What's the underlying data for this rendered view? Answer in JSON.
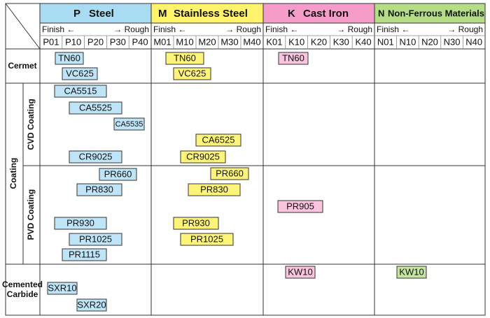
{
  "materials": [
    {
      "code": "P",
      "name": "Steel",
      "finish": "Finish ←",
      "rough": "→ Rough",
      "grades": [
        "P01",
        "P10",
        "P20",
        "P30",
        "P40"
      ]
    },
    {
      "code": "M",
      "name": "Stainless Steel",
      "finish": "Finish ←",
      "rough": "→ Rough",
      "grades": [
        "M01",
        "M10",
        "M20",
        "M30",
        "M40"
      ]
    },
    {
      "code": "K",
      "name": "Cast Iron",
      "finish": "Finish ←",
      "rough": "→ Rough",
      "grades": [
        "K01",
        "K10",
        "K20",
        "K30",
        "K40"
      ]
    },
    {
      "code": "N",
      "name": "Non-Ferrous Materials",
      "finish": "Finish ←",
      "rough": "→ Rough",
      "grades": [
        "N01",
        "N10",
        "N20",
        "N30",
        "N40"
      ]
    }
  ],
  "sections": [
    {
      "label": "Cermet",
      "cells": [
        [
          "TN60",
          "VC625"
        ],
        [
          "TN60",
          "VC625"
        ],
        [
          "TN60"
        ],
        []
      ]
    },
    {
      "label": "Coating",
      "subsections": [
        {
          "label": "CVD Coating",
          "cells": [
            [
              "CA5515",
              "CA5525",
              "CA5535",
              "CR9025"
            ],
            [
              "CA6525",
              "CR9025"
            ],
            [],
            []
          ]
        },
        {
          "label": "PVD Coating",
          "cells": [
            [
              "PR660",
              "PR830",
              "PR930",
              "PR1025",
              "PR1115"
            ],
            [
              "PR660",
              "PR830",
              "PR930",
              "PR1025"
            ],
            [
              "PR905"
            ],
            []
          ]
        }
      ]
    },
    {
      "label_lines": [
        "Cemented",
        "Carbide"
      ],
      "cells": [
        [
          "SXR10",
          "SXR20"
        ],
        [],
        [
          "KW10"
        ],
        [
          "KW10"
        ]
      ]
    }
  ]
}
